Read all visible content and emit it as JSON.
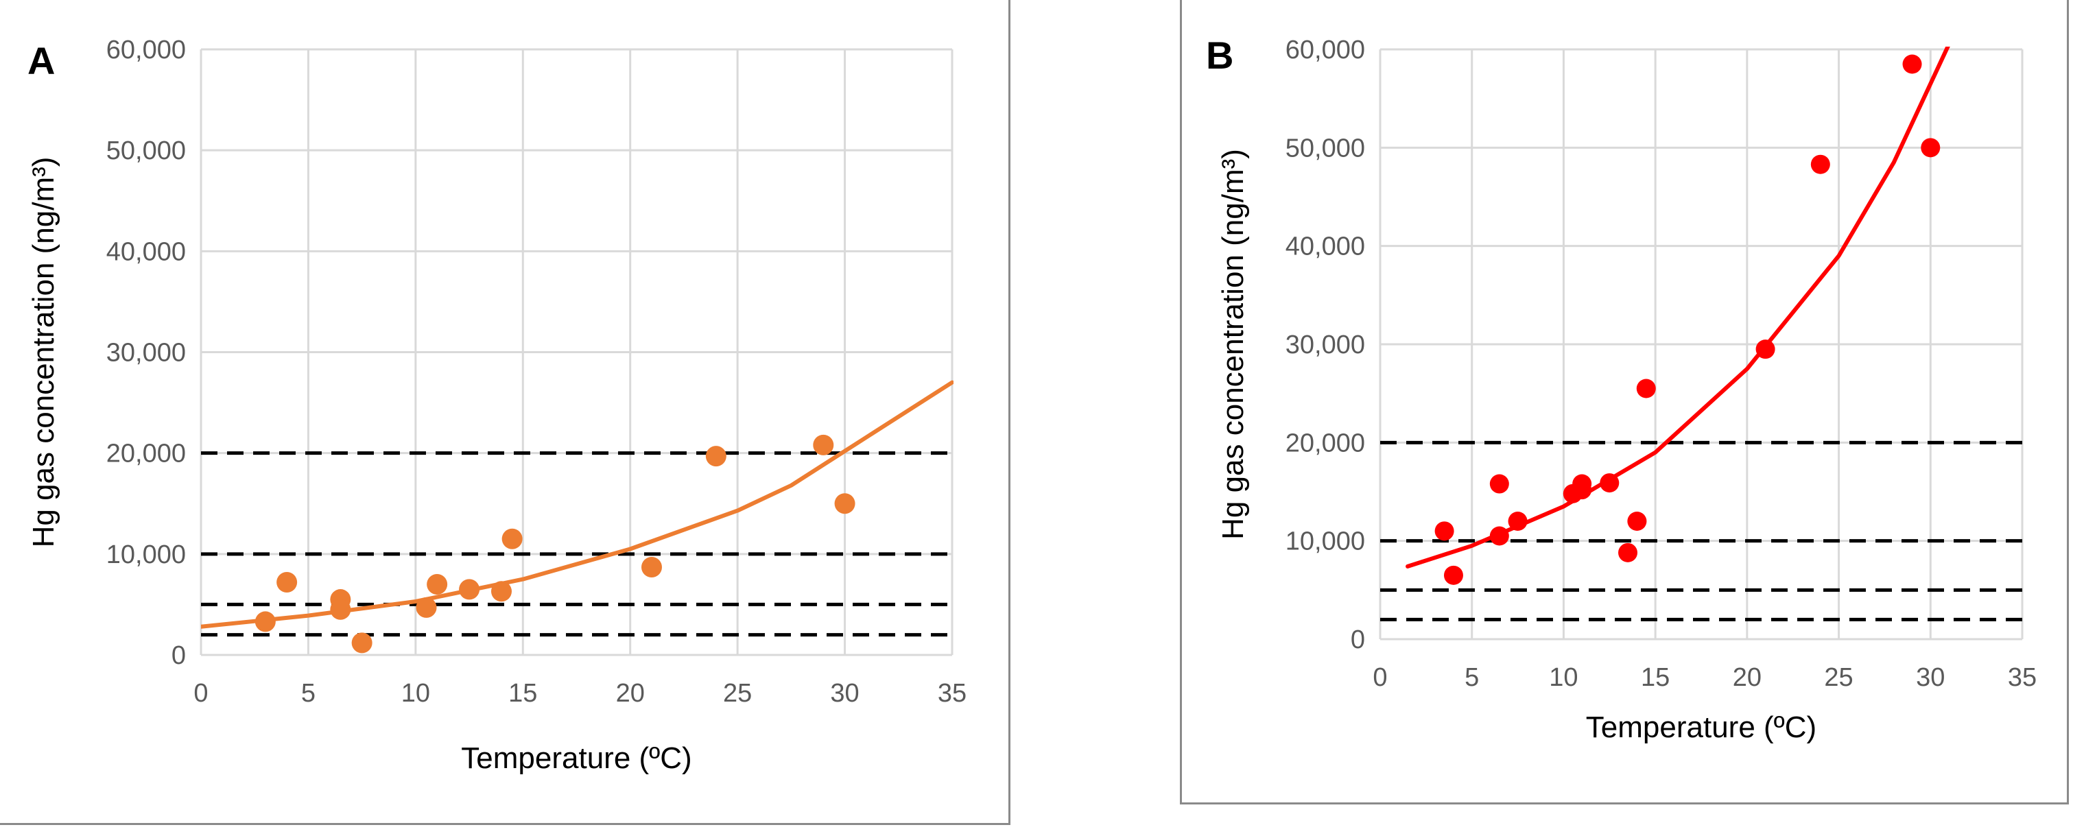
{
  "chart_data": [
    {
      "type": "scatter",
      "panel_label": "A",
      "xlabel": "Temperature (ºC)",
      "ylabel": "Hg gas concentration (ng/m³)",
      "xlim": [
        0,
        35
      ],
      "ylim": [
        0,
        60000
      ],
      "x_ticks": [
        "0",
        "5",
        "10",
        "15",
        "20",
        "25",
        "30",
        "35"
      ],
      "y_ticks": [
        "0",
        "10,000",
        "20,000",
        "30,000",
        "40,000",
        "50,000",
        "60,000"
      ],
      "grid": true,
      "color": "#ED7D31",
      "points": [
        {
          "x": 3,
          "y": 3300
        },
        {
          "x": 4,
          "y": 7200
        },
        {
          "x": 6.5,
          "y": 5500
        },
        {
          "x": 6.5,
          "y": 4500
        },
        {
          "x": 7.5,
          "y": 1200
        },
        {
          "x": 10.5,
          "y": 4700
        },
        {
          "x": 11,
          "y": 7000
        },
        {
          "x": 12.5,
          "y": 6500
        },
        {
          "x": 14,
          "y": 6300
        },
        {
          "x": 14.5,
          "y": 11500
        },
        {
          "x": 21,
          "y": 8700
        },
        {
          "x": 24,
          "y": 19700
        },
        {
          "x": 29,
          "y": 20800
        },
        {
          "x": 30,
          "y": 15000
        }
      ],
      "trendline": [
        {
          "x": 0,
          "y": 2800
        },
        {
          "x": 5,
          "y": 3900
        },
        {
          "x": 10,
          "y": 5300
        },
        {
          "x": 15,
          "y": 7500
        },
        {
          "x": 20,
          "y": 10500
        },
        {
          "x": 25,
          "y": 14300
        },
        {
          "x": 27.5,
          "y": 16800
        },
        {
          "x": 30,
          "y": 20200
        },
        {
          "x": 35,
          "y": 27000
        }
      ],
      "reference_lines": [
        2000,
        5000,
        10000,
        20000
      ]
    },
    {
      "type": "scatter",
      "panel_label": "B",
      "xlabel": "Temperature (ºC)",
      "ylabel": "Hg gas concentration (ng/m³)",
      "xlim": [
        0,
        35
      ],
      "ylim": [
        0,
        60000
      ],
      "x_ticks": [
        "0",
        "5",
        "10",
        "15",
        "20",
        "25",
        "30",
        "35"
      ],
      "y_ticks": [
        "0",
        "10,000",
        "20,000",
        "30,000",
        "40,000",
        "50,000",
        "60,000"
      ],
      "grid": true,
      "color": "#FF0000",
      "points": [
        {
          "x": 3.5,
          "y": 11000
        },
        {
          "x": 4,
          "y": 6500
        },
        {
          "x": 6.5,
          "y": 15800
        },
        {
          "x": 6.5,
          "y": 10500
        },
        {
          "x": 7.5,
          "y": 12000
        },
        {
          "x": 10.5,
          "y": 14800
        },
        {
          "x": 11,
          "y": 15800
        },
        {
          "x": 11,
          "y": 15200
        },
        {
          "x": 12.5,
          "y": 15900
        },
        {
          "x": 13.5,
          "y": 8800
        },
        {
          "x": 14,
          "y": 12000
        },
        {
          "x": 14.5,
          "y": 25500
        },
        {
          "x": 21,
          "y": 29500
        },
        {
          "x": 24,
          "y": 48300
        },
        {
          "x": 29,
          "y": 58500
        },
        {
          "x": 30,
          "y": 50000
        }
      ],
      "trendline": [
        {
          "x": 1.5,
          "y": 7400
        },
        {
          "x": 5,
          "y": 9500
        },
        {
          "x": 10,
          "y": 13500
        },
        {
          "x": 15,
          "y": 19000
        },
        {
          "x": 20,
          "y": 27500
        },
        {
          "x": 25,
          "y": 39000
        },
        {
          "x": 28,
          "y": 48500
        },
        {
          "x": 31,
          "y": 60500
        }
      ],
      "reference_lines": [
        2000,
        5000,
        10000,
        20000
      ]
    }
  ]
}
